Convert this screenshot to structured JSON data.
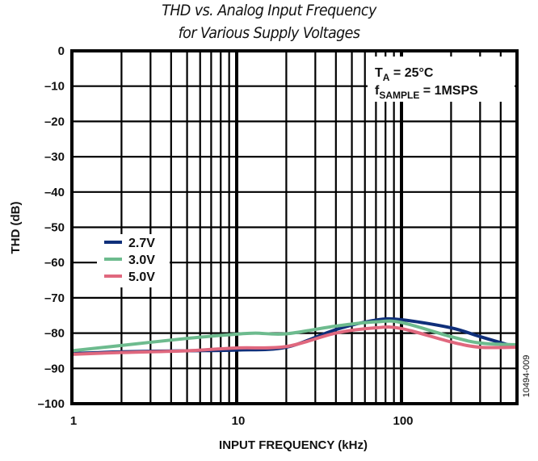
{
  "chart_data": {
    "type": "line",
    "title": "THD vs. Analog Input Frequency",
    "subtitle": "for Various Supply Voltages",
    "xlabel": "INPUT FREQUENCY (kHz)",
    "ylabel": "THD (dB)",
    "xscale": "log",
    "xlim": [
      1,
      500
    ],
    "ylim": [
      -100,
      0
    ],
    "x_ticks": [
      1,
      10,
      100
    ],
    "x_tick_labels": [
      "1",
      "10",
      "100"
    ],
    "y_ticks": [
      0,
      -10,
      -20,
      -30,
      -40,
      -50,
      -60,
      -70,
      -80,
      -90,
      -100
    ],
    "y_tick_labels": [
      "0",
      "–10",
      "–20",
      "–30",
      "–40",
      "–50",
      "–60",
      "–70",
      "–80",
      "–90",
      "–100"
    ],
    "grid": true,
    "legend_position": "center-left",
    "annotation": {
      "ta_label": "T",
      "ta_sub": "A",
      "ta_value": " = 25°C",
      "fs_label": "f",
      "fs_sub": "SAMPLE",
      "fs_value": " = 1MSPS"
    },
    "figure_id": "10494-009",
    "series": [
      {
        "name": "2.7V",
        "color": "#0f2f7a",
        "x": [
          1,
          2,
          5,
          10,
          20,
          40,
          70,
          100,
          200,
          300,
          500
        ],
        "y": [
          -85.8,
          -85.3,
          -85.0,
          -84.8,
          -84.0,
          -79.0,
          -76.3,
          -76.2,
          -78.5,
          -81.0,
          -84.0
        ]
      },
      {
        "name": "3.0V",
        "color": "#6dbb8e",
        "x": [
          1,
          2,
          5,
          10,
          13,
          20,
          40,
          70,
          100,
          200,
          300,
          500
        ],
        "y": [
          -85.0,
          -83.5,
          -81.5,
          -80.3,
          -80.0,
          -80.2,
          -78.0,
          -76.8,
          -77.0,
          -81.0,
          -82.8,
          -83.3
        ]
      },
      {
        "name": "5.0V",
        "color": "#e0687e",
        "x": [
          1,
          2,
          5,
          10,
          20,
          40,
          70,
          100,
          200,
          300,
          500
        ],
        "y": [
          -86.0,
          -85.5,
          -85.0,
          -84.2,
          -83.8,
          -80.0,
          -78.5,
          -78.7,
          -82.5,
          -84.0,
          -84.0
        ]
      }
    ]
  }
}
